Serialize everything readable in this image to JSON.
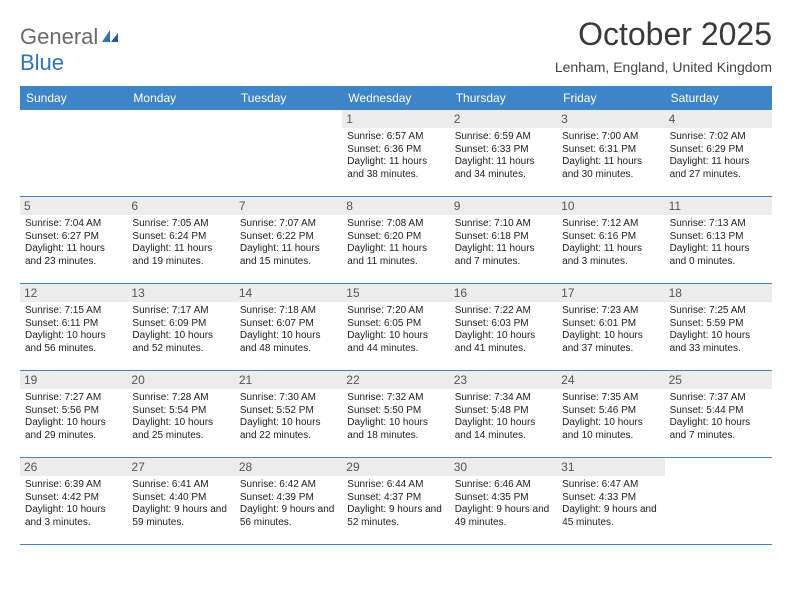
{
  "logo": {
    "text1": "General",
    "text2": "Blue"
  },
  "title": "October 2025",
  "location": "Lenham, England, United Kingdom",
  "colors": {
    "header_bg": "#3d85c6",
    "header_text": "#ffffff",
    "daynum_bg": "#ececec",
    "logo_gray": "#6b6b6b",
    "logo_blue": "#2e75b6",
    "border": "#3d85c6"
  },
  "weekdays": [
    "Sunday",
    "Monday",
    "Tuesday",
    "Wednesday",
    "Thursday",
    "Friday",
    "Saturday"
  ],
  "weeks": [
    [
      {
        "n": "",
        "sr": "",
        "ss": "",
        "dl": ""
      },
      {
        "n": "",
        "sr": "",
        "ss": "",
        "dl": ""
      },
      {
        "n": "",
        "sr": "",
        "ss": "",
        "dl": ""
      },
      {
        "n": "1",
        "sr": "Sunrise: 6:57 AM",
        "ss": "Sunset: 6:36 PM",
        "dl": "Daylight: 11 hours and 38 minutes."
      },
      {
        "n": "2",
        "sr": "Sunrise: 6:59 AM",
        "ss": "Sunset: 6:33 PM",
        "dl": "Daylight: 11 hours and 34 minutes."
      },
      {
        "n": "3",
        "sr": "Sunrise: 7:00 AM",
        "ss": "Sunset: 6:31 PM",
        "dl": "Daylight: 11 hours and 30 minutes."
      },
      {
        "n": "4",
        "sr": "Sunrise: 7:02 AM",
        "ss": "Sunset: 6:29 PM",
        "dl": "Daylight: 11 hours and 27 minutes."
      }
    ],
    [
      {
        "n": "5",
        "sr": "Sunrise: 7:04 AM",
        "ss": "Sunset: 6:27 PM",
        "dl": "Daylight: 11 hours and 23 minutes."
      },
      {
        "n": "6",
        "sr": "Sunrise: 7:05 AM",
        "ss": "Sunset: 6:24 PM",
        "dl": "Daylight: 11 hours and 19 minutes."
      },
      {
        "n": "7",
        "sr": "Sunrise: 7:07 AM",
        "ss": "Sunset: 6:22 PM",
        "dl": "Daylight: 11 hours and 15 minutes."
      },
      {
        "n": "8",
        "sr": "Sunrise: 7:08 AM",
        "ss": "Sunset: 6:20 PM",
        "dl": "Daylight: 11 hours and 11 minutes."
      },
      {
        "n": "9",
        "sr": "Sunrise: 7:10 AM",
        "ss": "Sunset: 6:18 PM",
        "dl": "Daylight: 11 hours and 7 minutes."
      },
      {
        "n": "10",
        "sr": "Sunrise: 7:12 AM",
        "ss": "Sunset: 6:16 PM",
        "dl": "Daylight: 11 hours and 3 minutes."
      },
      {
        "n": "11",
        "sr": "Sunrise: 7:13 AM",
        "ss": "Sunset: 6:13 PM",
        "dl": "Daylight: 11 hours and 0 minutes."
      }
    ],
    [
      {
        "n": "12",
        "sr": "Sunrise: 7:15 AM",
        "ss": "Sunset: 6:11 PM",
        "dl": "Daylight: 10 hours and 56 minutes."
      },
      {
        "n": "13",
        "sr": "Sunrise: 7:17 AM",
        "ss": "Sunset: 6:09 PM",
        "dl": "Daylight: 10 hours and 52 minutes."
      },
      {
        "n": "14",
        "sr": "Sunrise: 7:18 AM",
        "ss": "Sunset: 6:07 PM",
        "dl": "Daylight: 10 hours and 48 minutes."
      },
      {
        "n": "15",
        "sr": "Sunrise: 7:20 AM",
        "ss": "Sunset: 6:05 PM",
        "dl": "Daylight: 10 hours and 44 minutes."
      },
      {
        "n": "16",
        "sr": "Sunrise: 7:22 AM",
        "ss": "Sunset: 6:03 PM",
        "dl": "Daylight: 10 hours and 41 minutes."
      },
      {
        "n": "17",
        "sr": "Sunrise: 7:23 AM",
        "ss": "Sunset: 6:01 PM",
        "dl": "Daylight: 10 hours and 37 minutes."
      },
      {
        "n": "18",
        "sr": "Sunrise: 7:25 AM",
        "ss": "Sunset: 5:59 PM",
        "dl": "Daylight: 10 hours and 33 minutes."
      }
    ],
    [
      {
        "n": "19",
        "sr": "Sunrise: 7:27 AM",
        "ss": "Sunset: 5:56 PM",
        "dl": "Daylight: 10 hours and 29 minutes."
      },
      {
        "n": "20",
        "sr": "Sunrise: 7:28 AM",
        "ss": "Sunset: 5:54 PM",
        "dl": "Daylight: 10 hours and 25 minutes."
      },
      {
        "n": "21",
        "sr": "Sunrise: 7:30 AM",
        "ss": "Sunset: 5:52 PM",
        "dl": "Daylight: 10 hours and 22 minutes."
      },
      {
        "n": "22",
        "sr": "Sunrise: 7:32 AM",
        "ss": "Sunset: 5:50 PM",
        "dl": "Daylight: 10 hours and 18 minutes."
      },
      {
        "n": "23",
        "sr": "Sunrise: 7:34 AM",
        "ss": "Sunset: 5:48 PM",
        "dl": "Daylight: 10 hours and 14 minutes."
      },
      {
        "n": "24",
        "sr": "Sunrise: 7:35 AM",
        "ss": "Sunset: 5:46 PM",
        "dl": "Daylight: 10 hours and 10 minutes."
      },
      {
        "n": "25",
        "sr": "Sunrise: 7:37 AM",
        "ss": "Sunset: 5:44 PM",
        "dl": "Daylight: 10 hours and 7 minutes."
      }
    ],
    [
      {
        "n": "26",
        "sr": "Sunrise: 6:39 AM",
        "ss": "Sunset: 4:42 PM",
        "dl": "Daylight: 10 hours and 3 minutes."
      },
      {
        "n": "27",
        "sr": "Sunrise: 6:41 AM",
        "ss": "Sunset: 4:40 PM",
        "dl": "Daylight: 9 hours and 59 minutes."
      },
      {
        "n": "28",
        "sr": "Sunrise: 6:42 AM",
        "ss": "Sunset: 4:39 PM",
        "dl": "Daylight: 9 hours and 56 minutes."
      },
      {
        "n": "29",
        "sr": "Sunrise: 6:44 AM",
        "ss": "Sunset: 4:37 PM",
        "dl": "Daylight: 9 hours and 52 minutes."
      },
      {
        "n": "30",
        "sr": "Sunrise: 6:46 AM",
        "ss": "Sunset: 4:35 PM",
        "dl": "Daylight: 9 hours and 49 minutes."
      },
      {
        "n": "31",
        "sr": "Sunrise: 6:47 AM",
        "ss": "Sunset: 4:33 PM",
        "dl": "Daylight: 9 hours and 45 minutes."
      },
      {
        "n": "",
        "sr": "",
        "ss": "",
        "dl": ""
      }
    ]
  ]
}
